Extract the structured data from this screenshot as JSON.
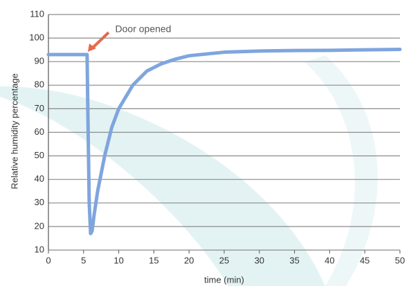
{
  "chart_data": {
    "type": "line",
    "x": [
      0,
      5.5,
      5.6,
      5.8,
      6,
      6.2,
      6.5,
      7,
      8,
      9,
      10,
      12,
      14,
      16,
      18,
      20,
      25,
      30,
      35,
      40,
      45,
      50
    ],
    "values": [
      93,
      93,
      70,
      30,
      17,
      18,
      25,
      35,
      50,
      62,
      70,
      80,
      86,
      89,
      91,
      92.5,
      94,
      94.5,
      94.7,
      94.8,
      95,
      95.2
    ],
    "color": "#7fa5de",
    "xlim": [
      0,
      50
    ],
    "xticks": [
      0,
      5,
      10,
      15,
      20,
      25,
      30,
      35,
      40,
      45,
      50
    ],
    "ylim": [
      10,
      110
    ],
    "yticks": [
      10,
      20,
      30,
      40,
      50,
      60,
      70,
      80,
      90,
      100,
      110
    ],
    "grid": true,
    "x_label": "time (min)",
    "y_label": "Relative humidity percentage",
    "annotation": "Door opened"
  }
}
